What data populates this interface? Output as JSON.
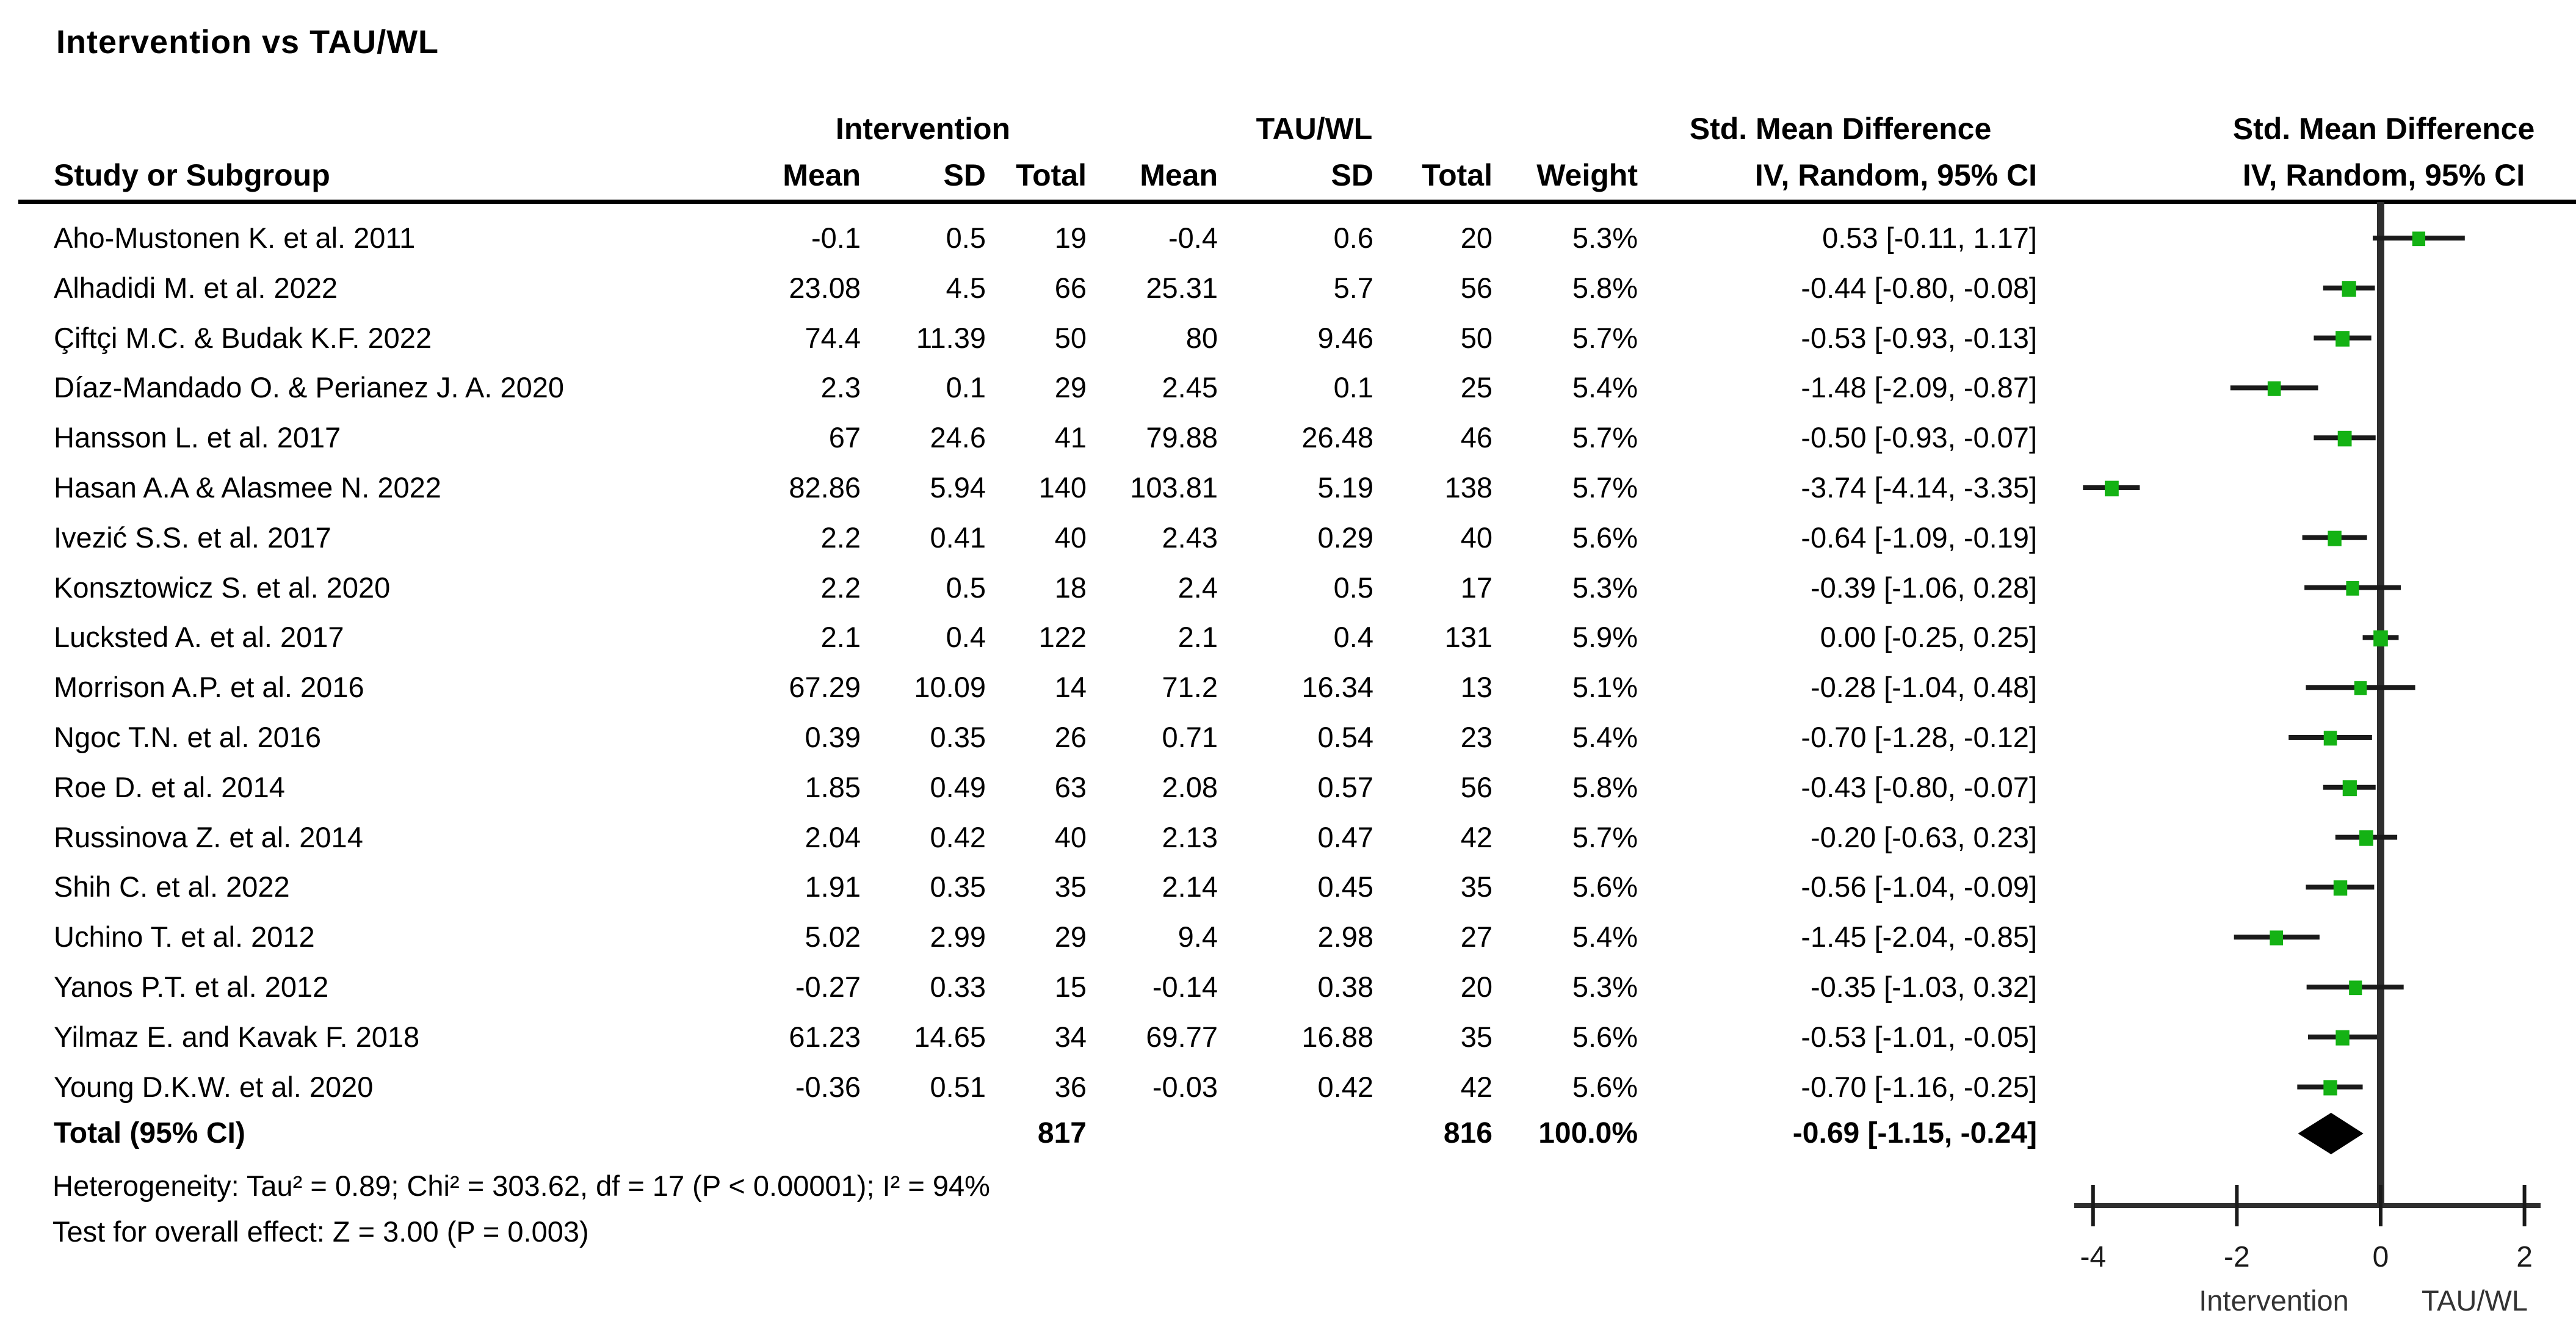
{
  "chart_data": {
    "type": "scatter",
    "variant": "forest-plot",
    "title": "Intervention vs TAU/WL",
    "group_headers": [
      "Intervention",
      "TAU/WL",
      "Std. Mean Difference",
      "Std. Mean Difference"
    ],
    "column_headers": [
      "Study or Subgroup",
      "Mean",
      "SD",
      "Total",
      "Mean",
      "SD",
      "Total",
      "Weight",
      "IV, Random, 95% CI",
      "IV, Random, 95% CI"
    ],
    "marker_color": "#14B214",
    "line_color": "#2e2e2e",
    "xlim": [
      -4.6,
      2.6
    ],
    "x_ticks": [
      "-4",
      "-2",
      "0",
      "2"
    ],
    "x_tick_values": [
      -4,
      -2,
      0,
      2
    ],
    "axis_label_left": "Intervention",
    "axis_label_right": "TAU/WL",
    "studies": [
      {
        "name": "Aho-Mustonen K. et al. 2011",
        "int_mean": "-0.1",
        "int_sd": "0.5",
        "int_total": "19",
        "tau_mean": "-0.4",
        "tau_sd": "0.6",
        "tau_total": "20",
        "weight": "5.3%",
        "ci_text": "0.53 [-0.11, 1.17]",
        "smd": 0.53,
        "lo": -0.11,
        "hi": 1.17
      },
      {
        "name": "Alhadidi M. et al. 2022",
        "int_mean": "23.08",
        "int_sd": "4.5",
        "int_total": "66",
        "tau_mean": "25.31",
        "tau_sd": "5.7",
        "tau_total": "56",
        "weight": "5.8%",
        "ci_text": "-0.44 [-0.80, -0.08]",
        "smd": -0.44,
        "lo": -0.8,
        "hi": -0.08
      },
      {
        "name": "Çiftçi M.C. & Budak K.F. 2022",
        "int_mean": "74.4",
        "int_sd": "11.39",
        "int_total": "50",
        "tau_mean": "80",
        "tau_sd": "9.46",
        "tau_total": "50",
        "weight": "5.7%",
        "ci_text": "-0.53 [-0.93, -0.13]",
        "smd": -0.53,
        "lo": -0.93,
        "hi": -0.13
      },
      {
        "name": "Díaz-Mandado O. & Perianez J. A. 2020",
        "int_mean": "2.3",
        "int_sd": "0.1",
        "int_total": "29",
        "tau_mean": "2.45",
        "tau_sd": "0.1",
        "tau_total": "25",
        "weight": "5.4%",
        "ci_text": "-1.48 [-2.09, -0.87]",
        "smd": -1.48,
        "lo": -2.09,
        "hi": -0.87
      },
      {
        "name": "Hansson L. et al. 2017",
        "int_mean": "67",
        "int_sd": "24.6",
        "int_total": "41",
        "tau_mean": "79.88",
        "tau_sd": "26.48",
        "tau_total": "46",
        "weight": "5.7%",
        "ci_text": "-0.50 [-0.93, -0.07]",
        "smd": -0.5,
        "lo": -0.93,
        "hi": -0.07
      },
      {
        "name": "Hasan A.A & Alasmee N. 2022",
        "int_mean": "82.86",
        "int_sd": "5.94",
        "int_total": "140",
        "tau_mean": "103.81",
        "tau_sd": "5.19",
        "tau_total": "138",
        "weight": "5.7%",
        "ci_text": "-3.74 [-4.14, -3.35]",
        "smd": -3.74,
        "lo": -4.14,
        "hi": -3.35
      },
      {
        "name": "Ivezić S.S. et al. 2017",
        "int_mean": "2.2",
        "int_sd": "0.41",
        "int_total": "40",
        "tau_mean": "2.43",
        "tau_sd": "0.29",
        "tau_total": "40",
        "weight": "5.6%",
        "ci_text": "-0.64 [-1.09, -0.19]",
        "smd": -0.64,
        "lo": -1.09,
        "hi": -0.19
      },
      {
        "name": "Konsztowicz S. et al. 2020",
        "int_mean": "2.2",
        "int_sd": "0.5",
        "int_total": "18",
        "tau_mean": "2.4",
        "tau_sd": "0.5",
        "tau_total": "17",
        "weight": "5.3%",
        "ci_text": "-0.39 [-1.06, 0.28]",
        "smd": -0.39,
        "lo": -1.06,
        "hi": 0.28
      },
      {
        "name": "Lucksted A. et al. 2017",
        "int_mean": "2.1",
        "int_sd": "0.4",
        "int_total": "122",
        "tau_mean": "2.1",
        "tau_sd": "0.4",
        "tau_total": "131",
        "weight": "5.9%",
        "ci_text": "0.00 [-0.25, 0.25]",
        "smd": 0.0,
        "lo": -0.25,
        "hi": 0.25
      },
      {
        "name": "Morrison A.P. et al. 2016",
        "int_mean": "67.29",
        "int_sd": "10.09",
        "int_total": "14",
        "tau_mean": "71.2",
        "tau_sd": "16.34",
        "tau_total": "13",
        "weight": "5.1%",
        "ci_text": "-0.28 [-1.04, 0.48]",
        "smd": -0.28,
        "lo": -1.04,
        "hi": 0.48
      },
      {
        "name": "Ngoc T.N. et al. 2016",
        "int_mean": "0.39",
        "int_sd": "0.35",
        "int_total": "26",
        "tau_mean": "0.71",
        "tau_sd": "0.54",
        "tau_total": "23",
        "weight": "5.4%",
        "ci_text": "-0.70 [-1.28, -0.12]",
        "smd": -0.7,
        "lo": -1.28,
        "hi": -0.12
      },
      {
        "name": "Roe D. et al. 2014",
        "int_mean": "1.85",
        "int_sd": "0.49",
        "int_total": "63",
        "tau_mean": "2.08",
        "tau_sd": "0.57",
        "tau_total": "56",
        "weight": "5.8%",
        "ci_text": "-0.43 [-0.80, -0.07]",
        "smd": -0.43,
        "lo": -0.8,
        "hi": -0.07
      },
      {
        "name": "Russinova Z. et al. 2014",
        "int_mean": "2.04",
        "int_sd": "0.42",
        "int_total": "40",
        "tau_mean": "2.13",
        "tau_sd": "0.47",
        "tau_total": "42",
        "weight": "5.7%",
        "ci_text": "-0.20 [-0.63, 0.23]",
        "smd": -0.2,
        "lo": -0.63,
        "hi": 0.23
      },
      {
        "name": "Shih C. et al. 2022",
        "int_mean": "1.91",
        "int_sd": "0.35",
        "int_total": "35",
        "tau_mean": "2.14",
        "tau_sd": "0.45",
        "tau_total": "35",
        "weight": "5.6%",
        "ci_text": "-0.56 [-1.04, -0.09]",
        "smd": -0.56,
        "lo": -1.04,
        "hi": -0.09
      },
      {
        "name": "Uchino T. et al. 2012",
        "int_mean": "5.02",
        "int_sd": "2.99",
        "int_total": "29",
        "tau_mean": "9.4",
        "tau_sd": "2.98",
        "tau_total": "27",
        "weight": "5.4%",
        "ci_text": "-1.45 [-2.04, -0.85]",
        "smd": -1.45,
        "lo": -2.04,
        "hi": -0.85
      },
      {
        "name": "Yanos P.T. et al. 2012",
        "int_mean": "-0.27",
        "int_sd": "0.33",
        "int_total": "15",
        "tau_mean": "-0.14",
        "tau_sd": "0.38",
        "tau_total": "20",
        "weight": "5.3%",
        "ci_text": "-0.35 [-1.03, 0.32]",
        "smd": -0.35,
        "lo": -1.03,
        "hi": 0.32
      },
      {
        "name": "Yilmaz E. and Kavak F. 2018",
        "int_mean": "61.23",
        "int_sd": "14.65",
        "int_total": "34",
        "tau_mean": "69.77",
        "tau_sd": "16.88",
        "tau_total": "35",
        "weight": "5.6%",
        "ci_text": "-0.53 [-1.01, -0.05]",
        "smd": -0.53,
        "lo": -1.01,
        "hi": -0.05
      },
      {
        "name": "Young D.K.W. et al. 2020",
        "int_mean": "-0.36",
        "int_sd": "0.51",
        "int_total": "36",
        "tau_mean": "-0.03",
        "tau_sd": "0.42",
        "tau_total": "42",
        "weight": "5.6%",
        "ci_text": "-0.70 [-1.16, -0.25]",
        "smd": -0.7,
        "lo": -1.16,
        "hi": -0.25
      }
    ],
    "total_row": {
      "label": "Total (95% CI)",
      "int_total": "817",
      "tau_total": "816",
      "weight": "100.0%",
      "ci_text": "-0.69 [-1.15, -0.24]",
      "smd": -0.69,
      "lo": -1.15,
      "hi": -0.24
    },
    "footer_lines": [
      "Heterogeneity: Tau² = 0.89; Chi² = 303.62, df = 17 (P < 0.00001); I² = 94%",
      "Test for overall effect: Z = 3.00 (P = 0.003)"
    ]
  }
}
